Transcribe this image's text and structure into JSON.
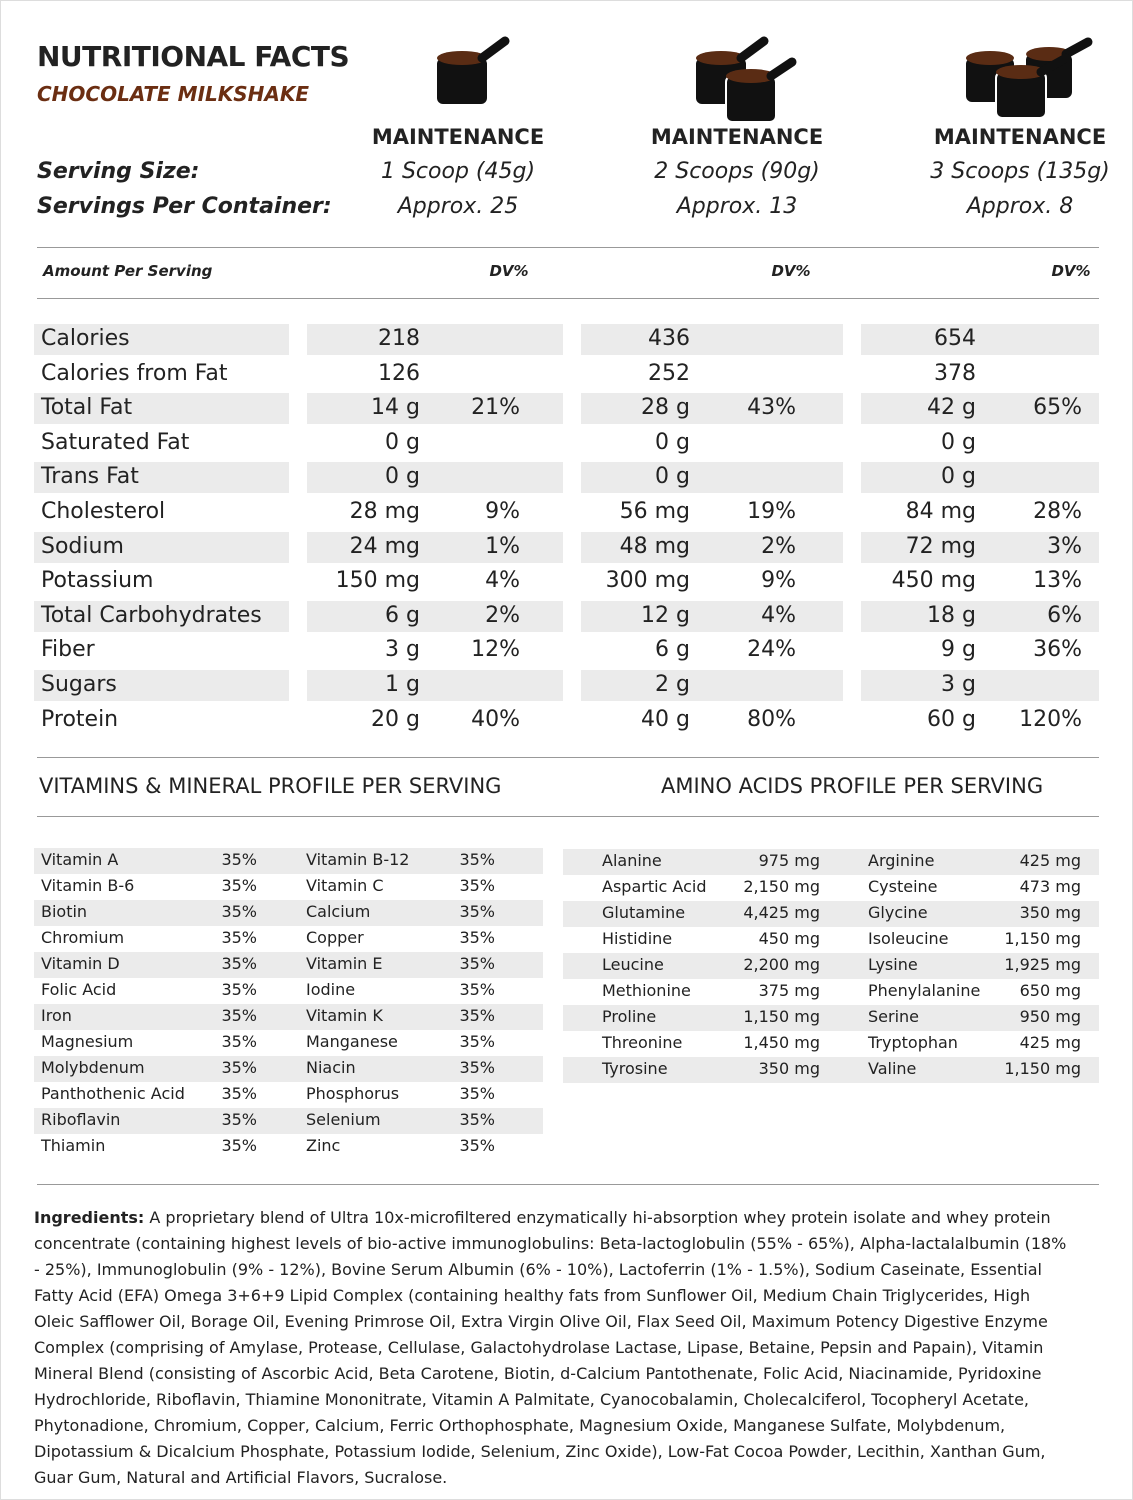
{
  "header": {
    "title": "NUTRITIONAL FACTS",
    "subtitle": "CHOCOLATE MILKSHAKE",
    "serving_size_label": "Serving Size:",
    "servings_per_container_label": "Servings Per Container:"
  },
  "plans": [
    {
      "name": "MAINTENANCE",
      "serving_size": "1 Scoop (45g)",
      "servings": "Approx. 25"
    },
    {
      "name": "MAINTENANCE",
      "serving_size": "2 Scoops (90g)",
      "servings": "Approx. 13"
    },
    {
      "name": "MAINTENANCE",
      "serving_size": "3 Scoops (135g)",
      "servings": "Approx. 8"
    }
  ],
  "nutrition": {
    "amount_label": "Amount Per Serving",
    "dv_label": "DV%",
    "rows": [
      {
        "name": "Calories",
        "values": [
          [
            "218",
            null
          ],
          [
            "436",
            null
          ],
          [
            "654",
            null
          ]
        ]
      },
      {
        "name": "Calories from Fat",
        "values": [
          [
            "126",
            null
          ],
          [
            "252",
            null
          ],
          [
            "378",
            null
          ]
        ]
      },
      {
        "name": "Total Fat",
        "values": [
          [
            "14 g",
            "21%"
          ],
          [
            "28 g",
            "43%"
          ],
          [
            "42 g",
            "65%"
          ]
        ]
      },
      {
        "name": "Saturated Fat",
        "values": [
          [
            "0 g",
            null
          ],
          [
            "0 g",
            null
          ],
          [
            "0 g",
            null
          ]
        ]
      },
      {
        "name": "Trans Fat",
        "values": [
          [
            "0 g",
            null
          ],
          [
            "0 g",
            null
          ],
          [
            "0 g",
            null
          ]
        ]
      },
      {
        "name": "Cholesterol",
        "values": [
          [
            "28 mg",
            "9%"
          ],
          [
            "56 mg",
            "19%"
          ],
          [
            "84 mg",
            "28%"
          ]
        ]
      },
      {
        "name": "Sodium",
        "values": [
          [
            "24 mg",
            "1%"
          ],
          [
            "48 mg",
            "2%"
          ],
          [
            "72 mg",
            "3%"
          ]
        ]
      },
      {
        "name": "Potassium",
        "values": [
          [
            "150 mg",
            "4%"
          ],
          [
            "300 mg",
            "9%"
          ],
          [
            "450 mg",
            "13%"
          ]
        ]
      },
      {
        "name": "Total Carbohydrates",
        "values": [
          [
            "6 g",
            "2%"
          ],
          [
            "12 g",
            "4%"
          ],
          [
            "18 g",
            "6%"
          ]
        ]
      },
      {
        "name": "Fiber",
        "values": [
          [
            "3 g",
            "12%"
          ],
          [
            "6 g",
            "24%"
          ],
          [
            "9 g",
            "36%"
          ]
        ]
      },
      {
        "name": "Sugars",
        "values": [
          [
            "1 g",
            null
          ],
          [
            "2 g",
            null
          ],
          [
            "3 g",
            null
          ]
        ]
      },
      {
        "name": "Protein",
        "values": [
          [
            "20 g",
            "40%"
          ],
          [
            "40 g",
            "80%"
          ],
          [
            "60 g",
            "120%"
          ]
        ]
      }
    ]
  },
  "vitamins": {
    "title": "VITAMINS & MINERAL PROFILE PER SERVING",
    "rows": [
      [
        [
          "Vitamin A",
          "35%"
        ],
        [
          "Vitamin B-12",
          "35%"
        ]
      ],
      [
        [
          "Vitamin B-6",
          "35%"
        ],
        [
          "Vitamin C",
          "35%"
        ]
      ],
      [
        [
          "Biotin",
          "35%"
        ],
        [
          "Calcium",
          "35%"
        ]
      ],
      [
        [
          "Chromium",
          "35%"
        ],
        [
          "Copper",
          "35%"
        ]
      ],
      [
        [
          "Vitamin D",
          "35%"
        ],
        [
          "Vitamin E",
          "35%"
        ]
      ],
      [
        [
          "Folic Acid",
          "35%"
        ],
        [
          "Iodine",
          "35%"
        ]
      ],
      [
        [
          "Iron",
          "35%"
        ],
        [
          "Vitamin K",
          "35%"
        ]
      ],
      [
        [
          "Magnesium",
          "35%"
        ],
        [
          "Manganese",
          "35%"
        ]
      ],
      [
        [
          "Molybdenum",
          "35%"
        ],
        [
          "Niacin",
          "35%"
        ]
      ],
      [
        [
          "Panthothenic Acid",
          "35%"
        ],
        [
          "Phosphorus",
          "35%"
        ]
      ],
      [
        [
          "Riboflavin",
          "35%"
        ],
        [
          "Selenium",
          "35%"
        ]
      ],
      [
        [
          "Thiamin",
          "35%"
        ],
        [
          "Zinc",
          "35%"
        ]
      ]
    ]
  },
  "amino_acids": {
    "title": "AMINO ACIDS PROFILE PER SERVING",
    "rows": [
      [
        [
          "Alanine",
          "975 mg"
        ],
        [
          "Arginine",
          "425 mg"
        ]
      ],
      [
        [
          "Aspartic Acid",
          "2,150 mg"
        ],
        [
          "Cysteine",
          "473 mg"
        ]
      ],
      [
        [
          "Glutamine",
          "4,425 mg"
        ],
        [
          "Glycine",
          "350 mg"
        ]
      ],
      [
        [
          "Histidine",
          "450 mg"
        ],
        [
          "Isoleucine",
          "1,150 mg"
        ]
      ],
      [
        [
          "Leucine",
          "2,200 mg"
        ],
        [
          "Lysine",
          "1,925 mg"
        ]
      ],
      [
        [
          "Methionine",
          "375 mg"
        ],
        [
          "Phenylalanine",
          "650 mg"
        ]
      ],
      [
        [
          "Proline",
          "1,150 mg"
        ],
        [
          "Serine",
          "950 mg"
        ]
      ],
      [
        [
          "Threonine",
          "1,450 mg"
        ],
        [
          "Tryptophan",
          "425 mg"
        ]
      ],
      [
        [
          "Tyrosine",
          "350 mg"
        ],
        [
          "Valine",
          "1,150 mg"
        ]
      ]
    ]
  },
  "ingredients": {
    "label": "Ingredients:",
    "text": " A proprietary blend of Ultra 10x-microfiltered enzymatically hi-absorption whey protein isolate and whey protein concentrate (containing highest levels of bio-active immunoglobulins:  Beta-lactoglobulin (55% - 65%), Alpha-lactalalbumin (18% - 25%), Immunoglobulin (9% - 12%), Bovine Serum Albumin (6% - 10%), Lactoferrin (1% - 1.5%), Sodium Caseinate, Essential Fatty Acid (EFA) Omega 3+6+9 Lipid Complex (containing healthy fats from Sunflower Oil, Medium Chain Triglycerides, High Oleic Safflower Oil, Borage Oil, Evening Primrose Oil, Extra Virgin Olive Oil, Flax Seed Oil, Maximum Potency Digestive Enzyme Complex (comprising of Amylase, Protease, Cellulase, Galactohydrolase Lactase, Lipase, Betaine, Pepsin and Papain), Vitamin Mineral Blend (consisting of Ascorbic Acid, Beta Carotene, Biotin, d-Calcium Pantothenate, Folic Acid, Niacinamide, Pyridoxine Hydrochloride, Riboflavin, Thiamine Mononitrate, Vitamin A Palmitate, Cyanocobalamin, Cholecalciferol, Tocopheryl Acetate, Phytonadione, Chromium, Copper, Calcium, Ferric Orthophosphate, Magnesium Oxide, Manganese Sulfate, Molybdenum, Dipotassium & Dicalcium Phosphate, Potassium Iodide, Selenium, Zinc Oxide), Low-Fat Cocoa Powder, Lecithin, Xanthan Gum, Guar Gum, Natural and Artificial Flavors, Sucralose."
  }
}
